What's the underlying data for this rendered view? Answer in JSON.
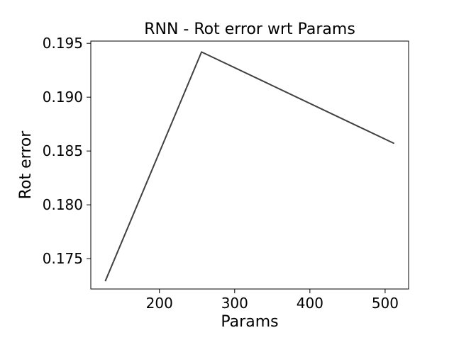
{
  "chart_data": {
    "type": "line",
    "title": "RNN - Rot error wrt Params",
    "xlabel": "Params",
    "ylabel": "Rot error",
    "xlim": [
      108.8,
      531.2
    ],
    "ylim": [
      0.17218,
      0.19521
    ],
    "xticks": [
      200,
      300,
      400,
      500
    ],
    "xtick_labels": [
      "200",
      "300",
      "400",
      "500"
    ],
    "yticks": [
      0.175,
      0.18,
      0.185,
      0.19,
      0.195
    ],
    "ytick_labels": [
      "0.175",
      "0.180",
      "0.185",
      "0.190",
      "0.195"
    ],
    "grid": false,
    "legend": false,
    "series": [
      {
        "x": [
          128,
          256,
          512
        ],
        "y": [
          0.1729,
          0.1942,
          0.1857
        ],
        "color": "#404040"
      }
    ]
  }
}
